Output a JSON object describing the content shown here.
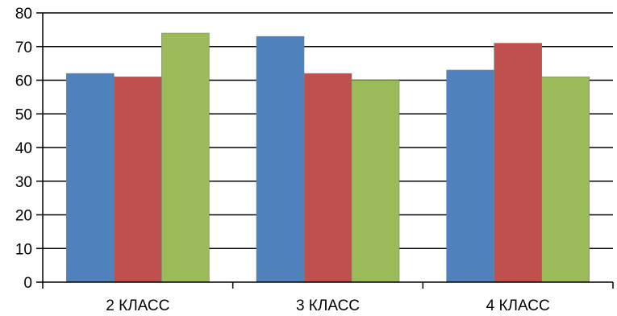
{
  "chart_data": {
    "type": "bar",
    "categories": [
      "2 КЛАСС",
      "3 КЛАСС",
      "4 КЛАСС"
    ],
    "series": [
      {
        "color": "#4f81bd",
        "values": [
          62,
          73,
          63
        ]
      },
      {
        "color": "#c0504d",
        "values": [
          61,
          62,
          71
        ]
      },
      {
        "color": "#9bbb59",
        "values": [
          74,
          60,
          61
        ]
      }
    ],
    "ylim": [
      0,
      80
    ],
    "y_ticks": [
      "0",
      "10",
      "20",
      "30",
      "40",
      "50",
      "60",
      "70",
      "80"
    ],
    "grid": true,
    "legend": "none"
  }
}
